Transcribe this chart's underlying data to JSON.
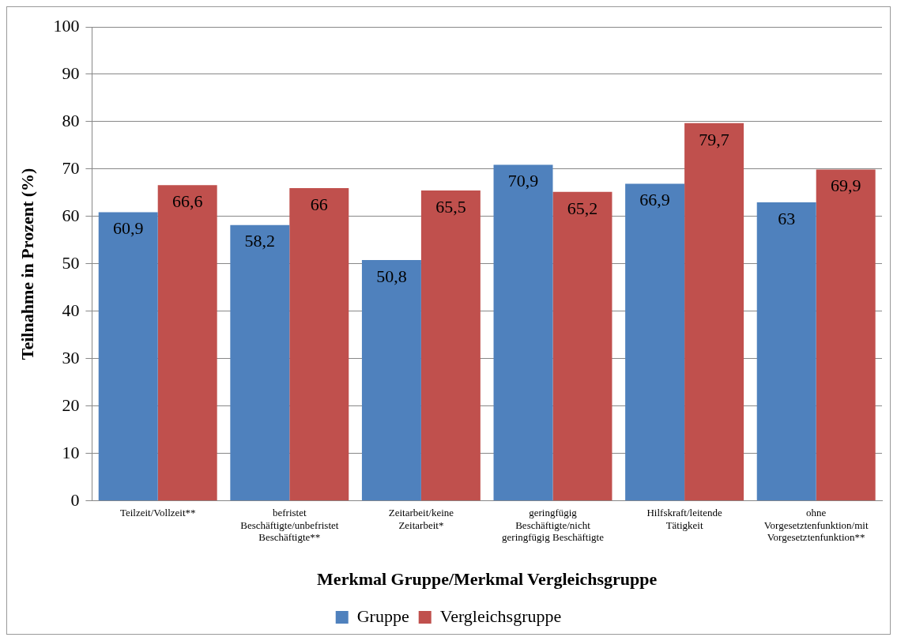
{
  "chart_data": {
    "type": "bar",
    "xlabel": "Merkmal Gruppe/Merkmal Vergleichsgruppe",
    "ylabel": "Teilnahme in Prozent (%)",
    "categories": [
      "Teilzeit/Vollzeit**",
      "befristet Beschäftigte/unbefristet Beschäftigte**",
      "Zeitarbeit/keine Zeitarbeit*",
      "geringfügig Beschäftigte/nicht geringfügig Beschäftigte",
      "Hilfskraft/leitende Tätigkeit",
      "ohne Vorgesetztenfunktion/mit Vorgesetztenfunktion**"
    ],
    "series": [
      {
        "name": "Gruppe",
        "color": "#4f81bd",
        "values": [
          60.9,
          58.2,
          50.8,
          70.9,
          66.9,
          63
        ],
        "value_labels": [
          "60,9",
          "58,2",
          "50,8",
          "70,9",
          "66,9",
          "63"
        ]
      },
      {
        "name": "Vergleichsgruppe",
        "color": "#c0504d",
        "values": [
          66.6,
          66,
          65.5,
          65.2,
          79.7,
          69.9
        ],
        "value_labels": [
          "66,6",
          "66",
          "65,5",
          "65,2",
          "79,7",
          "69,9"
        ]
      }
    ],
    "ylim": [
      0,
      100
    ],
    "yticks": [
      0,
      10,
      20,
      30,
      40,
      50,
      60,
      70,
      80,
      90,
      100
    ],
    "grid": "y",
    "legend": "bottom"
  }
}
